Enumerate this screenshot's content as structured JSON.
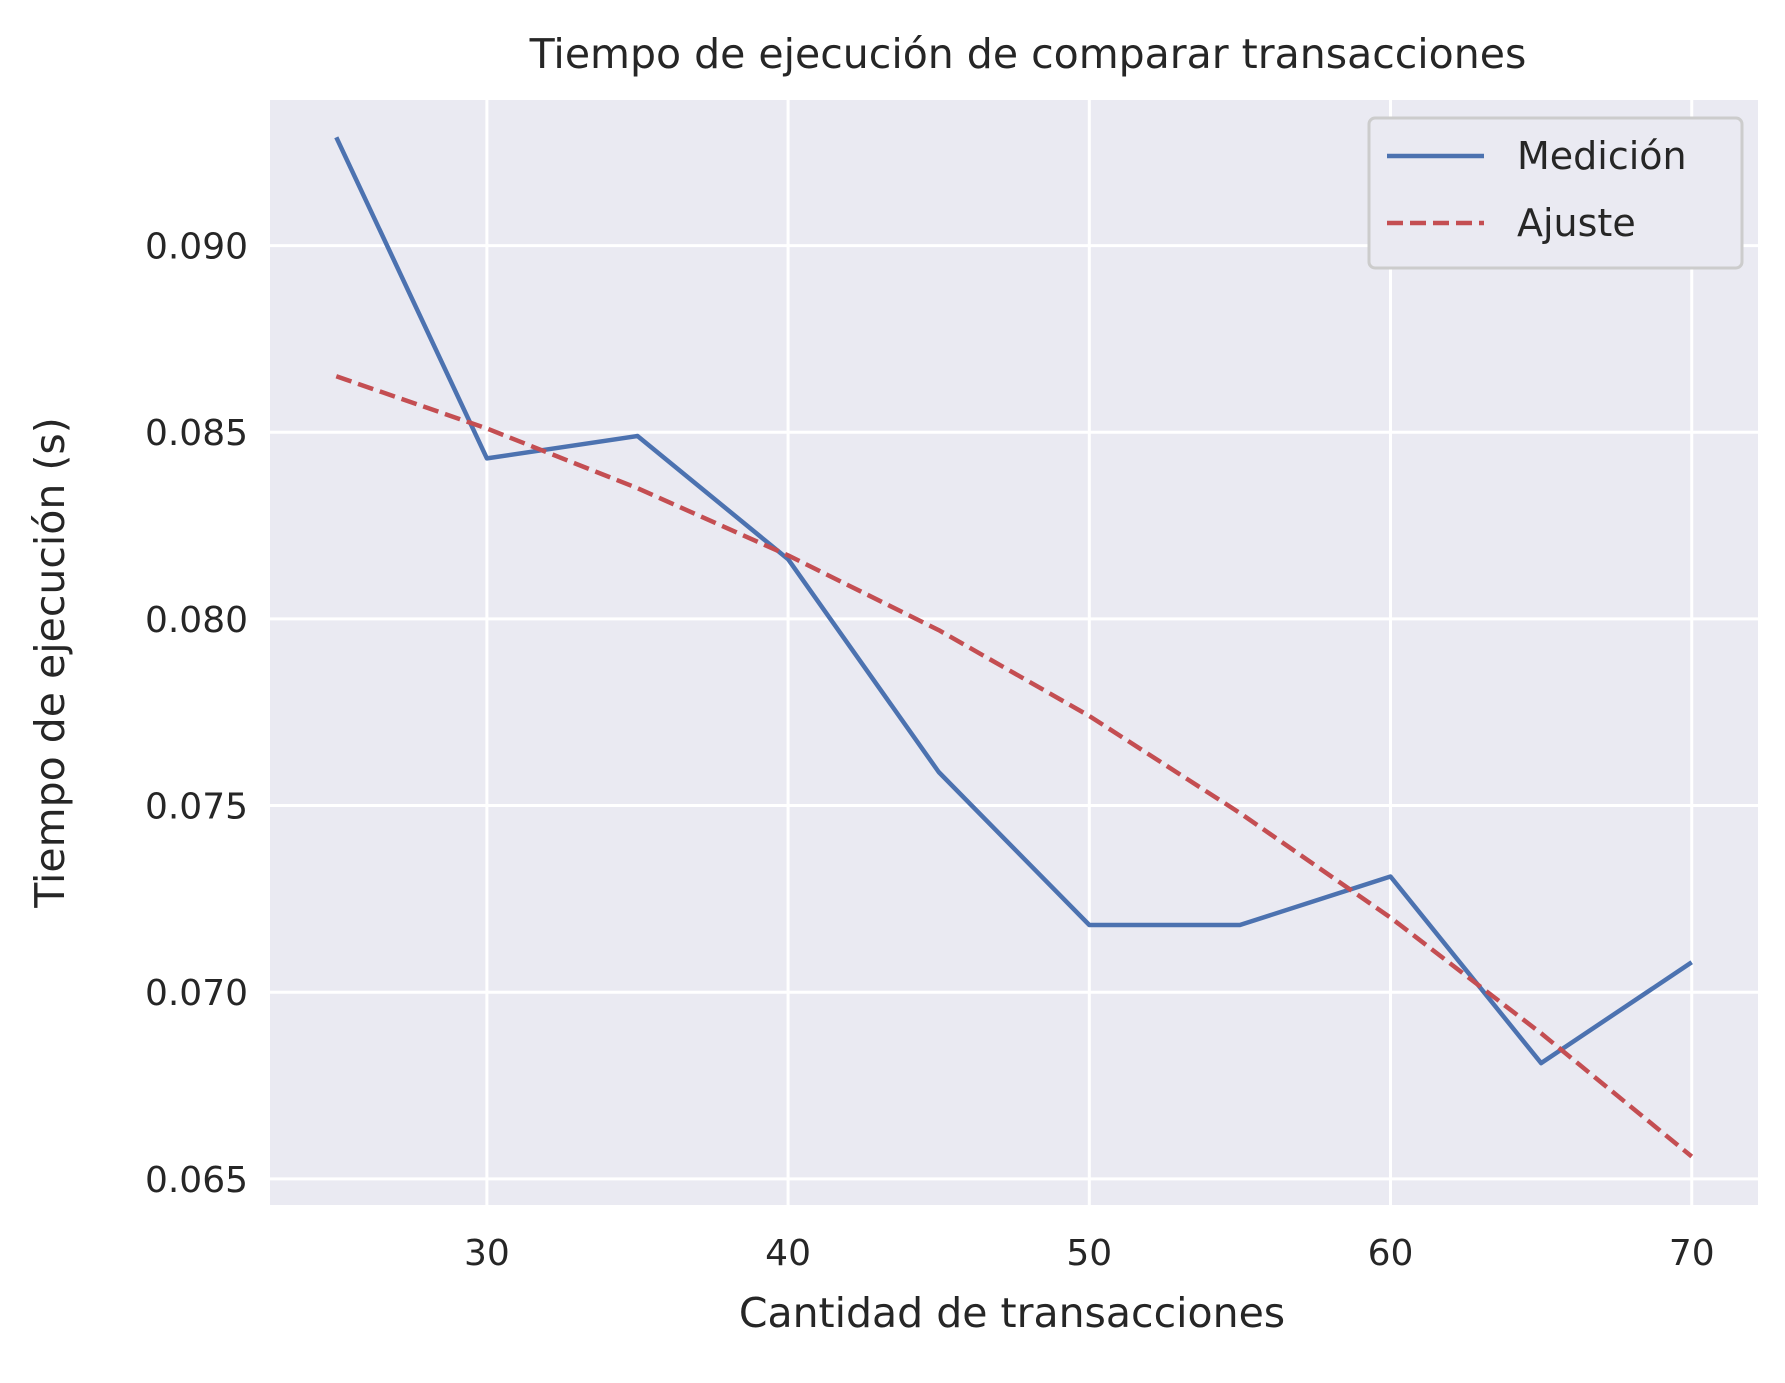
{
  "chart_data": {
    "type": "line",
    "title": "Tiempo de ejecución de comparar transacciones",
    "xlabel": "Cantidad de transacciones",
    "ylabel": "Tiempo de ejecución (s)",
    "xlim": [
      22.8,
      72.2
    ],
    "ylim": [
      0.0643,
      0.0939
    ],
    "xticks": [
      30,
      40,
      50,
      60,
      70
    ],
    "xtick_labels": [
      "30",
      "40",
      "50",
      "60",
      "70"
    ],
    "yticks": [
      0.065,
      0.07,
      0.075,
      0.08,
      0.085,
      0.09
    ],
    "ytick_labels": [
      "0.065",
      "0.070",
      "0.075",
      "0.080",
      "0.085",
      "0.090"
    ],
    "grid": true,
    "legend_position": "top-right",
    "x": [
      25,
      30,
      35,
      40,
      45,
      50,
      55,
      60,
      65,
      70
    ],
    "series": [
      {
        "name": "Medición",
        "style": "solid",
        "color": "#4c72b0",
        "values": [
          0.0929,
          0.0843,
          0.0849,
          0.0816,
          0.0759,
          0.0718,
          0.0718,
          0.0731,
          0.0681,
          0.0708
        ]
      },
      {
        "name": "Ajuste",
        "style": "dashed",
        "color": "#c44e52",
        "values": [
          0.0865,
          0.0851,
          0.0835,
          0.0817,
          0.0797,
          0.0774,
          0.0748,
          0.072,
          0.0689,
          0.0656
        ]
      }
    ],
    "plot_background": "#eaeaf2",
    "grid_color": "#ffffff"
  }
}
